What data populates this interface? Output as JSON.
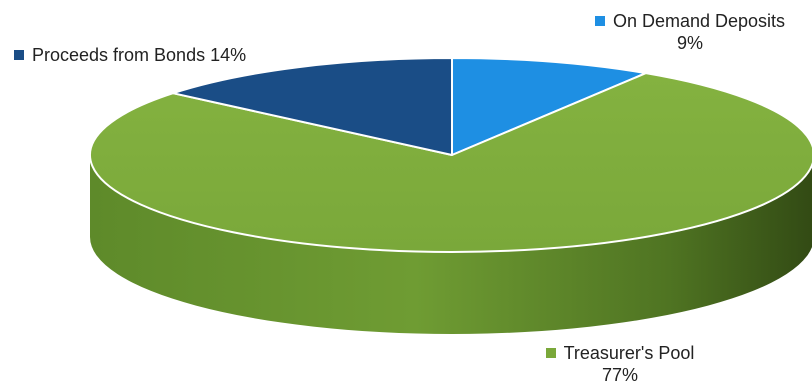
{
  "chart_data": {
    "type": "pie",
    "style": "3d",
    "slices": [
      {
        "label": "On Demand Deposits",
        "value": 9,
        "display": "9%",
        "color": "#1e8fe3"
      },
      {
        "label": "Treasurer's Pool",
        "value": 77,
        "display": "77%",
        "color": "#7aa83a"
      },
      {
        "label": "Proceeds from Bonds",
        "value": 14,
        "display": "14%",
        "color": "#1a4d86"
      }
    ]
  }
}
